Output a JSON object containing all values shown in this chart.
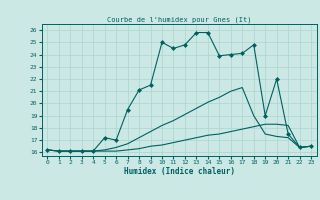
{
  "title": "Courbe de l'humidex pour Gnes (It)",
  "xlabel": "Humidex (Indice chaleur)",
  "xlim": [
    -0.5,
    23.5
  ],
  "ylim": [
    15.7,
    26.5
  ],
  "xticks": [
    0,
    1,
    2,
    3,
    4,
    5,
    6,
    7,
    8,
    9,
    10,
    11,
    12,
    13,
    14,
    15,
    16,
    17,
    18,
    19,
    20,
    21,
    22,
    23
  ],
  "yticks": [
    16,
    17,
    18,
    19,
    20,
    21,
    22,
    23,
    24,
    25,
    26
  ],
  "bg_color": "#cce8e5",
  "grid_color": "#aad4d0",
  "line_color": "#006060",
  "line1_x": [
    0,
    1,
    2,
    3,
    4,
    5,
    6,
    7,
    8,
    9,
    10,
    11,
    12,
    13,
    14,
    15,
    16,
    17,
    18,
    19,
    20,
    21,
    22,
    23
  ],
  "line1_y": [
    16.2,
    16.1,
    16.1,
    16.1,
    16.1,
    17.2,
    17.0,
    19.5,
    21.1,
    21.5,
    25.0,
    24.5,
    24.8,
    25.8,
    25.8,
    23.9,
    24.0,
    24.1,
    24.8,
    19.0,
    22.0,
    17.5,
    16.4,
    16.5
  ],
  "line2_x": [
    0,
    1,
    2,
    3,
    4,
    5,
    6,
    7,
    8,
    9,
    10,
    11,
    12,
    13,
    14,
    15,
    16,
    17,
    18,
    19,
    20,
    21,
    22,
    23
  ],
  "line2_y": [
    16.2,
    16.1,
    16.1,
    16.1,
    16.1,
    16.2,
    16.4,
    16.7,
    17.2,
    17.7,
    18.2,
    18.6,
    19.1,
    19.6,
    20.1,
    20.5,
    21.0,
    21.3,
    19.0,
    17.5,
    17.3,
    17.2,
    16.4,
    16.5
  ],
  "line3_x": [
    0,
    1,
    2,
    3,
    4,
    5,
    6,
    7,
    8,
    9,
    10,
    11,
    12,
    13,
    14,
    15,
    16,
    17,
    18,
    19,
    20,
    21,
    22,
    23
  ],
  "line3_y": [
    16.2,
    16.1,
    16.1,
    16.1,
    16.1,
    16.1,
    16.1,
    16.2,
    16.3,
    16.5,
    16.6,
    16.8,
    17.0,
    17.2,
    17.4,
    17.5,
    17.7,
    17.9,
    18.1,
    18.3,
    18.3,
    18.2,
    16.4,
    16.5
  ]
}
